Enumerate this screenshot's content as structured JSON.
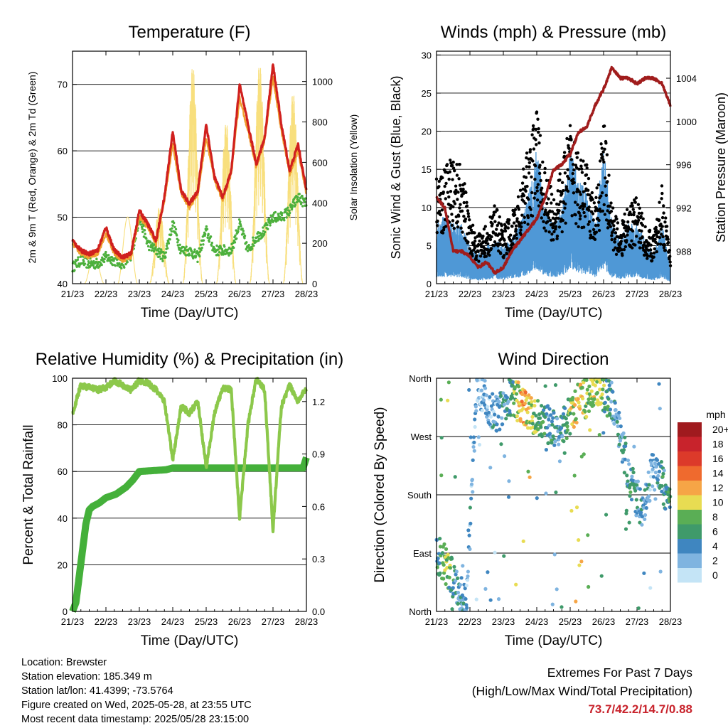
{
  "x_ticks": [
    "21/23",
    "22/23",
    "23/23",
    "24/23",
    "25/23",
    "26/23",
    "27/23",
    "28/23"
  ],
  "panels": {
    "temperature": {
      "title": "Temperature (F)",
      "xlabel": "Time (Day/UTC)",
      "ylabel_left": "2m & 9m T (Red, Orange) & 2m Td (Green)",
      "ylabel_right": "Solar Insolation (Yellow)",
      "yticks_left": [
        "40",
        "50",
        "60",
        "70"
      ],
      "yticks_right": [
        "0",
        "200",
        "400",
        "600",
        "800",
        "1000"
      ]
    },
    "winds": {
      "title": "Winds (mph) & Pressure (mb)",
      "xlabel": "Time (Day/UTC)",
      "ylabel_left": "Sonic Wind & Gust (Blue, Black)",
      "ylabel_right": "Station Pressure (Maroon)",
      "yticks_left": [
        "0",
        "5",
        "10",
        "15",
        "20",
        "25",
        "30"
      ],
      "yticks_right": [
        "988",
        "992",
        "996",
        "1000",
        "1004"
      ]
    },
    "humidity": {
      "title": "Relative Humidity (%) & Precipitation (in)",
      "xlabel": "Time (Day/UTC)",
      "ylabel_left": "Percent & Total Rainfall",
      "yticks_left": [
        "0",
        "20",
        "40",
        "60",
        "80",
        "100"
      ],
      "yticks_right": [
        "0.0",
        "0.3",
        "0.6",
        "0.9",
        "1.2"
      ]
    },
    "direction": {
      "title": "Wind Direction",
      "xlabel": "Time (Day/UTC)",
      "ylabel_left": "Direction (Colored By Speed)",
      "yticks_left": [
        "North",
        "East",
        "South",
        "West",
        "North"
      ],
      "legend_title": "mph",
      "legend_labels": [
        "20+",
        "18",
        "16",
        "14",
        "12",
        "10",
        "8",
        "6",
        "4",
        "2",
        "0"
      ],
      "legend_colors": [
        "#a01a1e",
        "#c8232c",
        "#dc3a2a",
        "#ef6a2e",
        "#f6a546",
        "#e8dc52",
        "#5aae55",
        "#3f9a6a",
        "#3f86c0",
        "#7fb4e0",
        "#c4e4f6"
      ]
    }
  },
  "info": {
    "location": "Location: Brewster",
    "elevation": "Station elevation: 185.349 m",
    "latlon": "Station lat/lon: 41.4399; -73.5764",
    "created": "Figure created on Wed, 2025-05-28, at 23:55 UTC",
    "recent": "Most recent data timestamp: 2025/05/28 23:15:00"
  },
  "extremes": {
    "heading": "Extremes For Past 7 Days",
    "subheading": "(High/Low/Max Wind/Total Precipitation)",
    "values": "73.7/42.2/14.7/0.88"
  },
  "chart_data": [
    {
      "type": "line",
      "title": "Temperature (F)",
      "xlabel": "Time (Day/UTC)",
      "ylabel": "2m & 9m T (Red, Orange) & 2m Td (Green)",
      "ylim": [
        40,
        75
      ],
      "y2label": "Solar Insolation (Yellow)",
      "y2lim": [
        0,
        1150
      ],
      "x": [
        21,
        21.25,
        21.5,
        21.75,
        22,
        22.25,
        22.5,
        22.75,
        23,
        23.25,
        23.5,
        23.75,
        24,
        24.25,
        24.5,
        24.75,
        25,
        25.25,
        25.5,
        25.75,
        26,
        26.25,
        26.5,
        26.75,
        27,
        27.25,
        27.5,
        27.75,
        28
      ],
      "series": [
        {
          "name": "2m T",
          "color": "#d0201e",
          "axis": "left",
          "values": [
            46.5,
            45,
            44.5,
            45,
            48.5,
            45,
            44,
            44.5,
            51,
            49,
            46.5,
            53,
            63,
            54,
            52,
            54,
            64,
            56,
            53,
            57,
            70,
            64,
            58,
            62,
            73,
            64,
            57,
            61,
            54
          ]
        },
        {
          "name": "9m T",
          "color": "#f0a030",
          "axis": "left",
          "values": [
            46,
            44.5,
            44,
            44.5,
            47.5,
            44.5,
            43.5,
            44,
            50,
            48.5,
            46,
            52.5,
            61,
            53.5,
            51.5,
            53.5,
            62,
            55.5,
            52.5,
            56.5,
            68,
            63,
            57.5,
            61.5,
            71,
            63,
            56.5,
            60,
            53.5
          ]
        },
        {
          "name": "2m Td",
          "color": "#4cb03c",
          "axis": "left",
          "values": [
            42.5,
            43.5,
            43,
            43,
            44,
            43.5,
            43,
            44,
            50,
            46,
            45,
            44,
            49,
            45,
            45,
            44,
            48,
            45,
            45,
            45,
            49,
            45,
            47,
            48,
            50,
            50,
            51,
            53,
            52
          ]
        },
        {
          "name": "Solar",
          "color": "#f7dc6f",
          "axis": "right",
          "peaks_x": [
            21.65,
            22.65,
            23.6,
            24.6,
            25.6,
            26.6,
            27.6
          ],
          "peaks": [
            150,
            330,
            380,
            1080,
            800,
            1090,
            950
          ]
        }
      ]
    },
    {
      "type": "scatter",
      "title": "Winds (mph) & Pressure (mb)",
      "xlabel": "Time (Day/UTC)",
      "ylabel": "Sonic Wind & Gust (Blue, Black)",
      "ylim": [
        0,
        30.5
      ],
      "y2label": "Station Pressure (Maroon)",
      "y2lim": [
        985,
        1006.5
      ],
      "x": [
        21,
        21.25,
        21.5,
        21.75,
        22,
        22.25,
        22.5,
        22.75,
        23,
        23.25,
        23.5,
        23.75,
        24,
        24.25,
        24.5,
        24.75,
        25,
        25.25,
        25.5,
        25.75,
        26,
        26.25,
        26.5,
        26.75,
        27,
        27.25,
        27.5,
        27.75,
        28
      ],
      "series": [
        {
          "name": "Wind",
          "color": "#4f98d6",
          "values": [
            4,
            4.5,
            4,
            4,
            2.5,
            2,
            2.5,
            3,
            2.5,
            3,
            4,
            6,
            9,
            5,
            4,
            5,
            9,
            7,
            6,
            4,
            9,
            4,
            3,
            4,
            4,
            3,
            2,
            4,
            1
          ]
        },
        {
          "name": "Gust",
          "color": "#000000",
          "values": [
            11,
            12,
            13,
            12,
            7,
            5,
            6,
            8,
            6,
            7,
            10,
            14,
            18,
            12,
            9,
            12,
            17,
            13,
            12,
            8,
            17,
            8,
            6,
            8,
            9,
            6,
            5,
            10,
            3
          ]
        },
        {
          "name": "Pressure",
          "color": "#a01c1c",
          "values": [
            993,
            992,
            988,
            988,
            987.5,
            986.5,
            987,
            986,
            986.5,
            988,
            989,
            990,
            991,
            993,
            995.5,
            996,
            997,
            999,
            999.5,
            1001.5,
            1003,
            1005,
            1004,
            1004,
            1003.5,
            1004,
            1004,
            1003.5,
            1001.5
          ]
        }
      ]
    },
    {
      "type": "line",
      "title": "Relative Humidity (%) & Precipitation (in)",
      "xlabel": "Time (Day/UTC)",
      "ylabel": "Percent & Total Rainfall",
      "ylim": [
        0,
        100
      ],
      "y2lim": [
        0,
        1.3333
      ],
      "x": [
        21,
        21.25,
        21.5,
        21.75,
        22,
        22.25,
        22.5,
        22.75,
        23,
        23.25,
        23.5,
        23.75,
        24,
        24.25,
        24.5,
        24.75,
        25,
        25.25,
        25.5,
        25.75,
        26,
        26.25,
        26.5,
        26.75,
        27,
        27.25,
        27.5,
        27.75,
        28
      ],
      "series": [
        {
          "name": "Relative Humidity",
          "color": "#8cc84b",
          "values": [
            85,
            97,
            96,
            95,
            96,
            99,
            97,
            95,
            99,
            98,
            95,
            90,
            65,
            88,
            85,
            90,
            62,
            85,
            96,
            95,
            40,
            80,
            100,
            95,
            35,
            88,
            97,
            90,
            96
          ]
        },
        {
          "name": "Total Rainfall",
          "color": "#44b03a",
          "axis": "right",
          "x": [
            21,
            21.1,
            21.2,
            21.3,
            21.4,
            21.5,
            21.6,
            21.8,
            22,
            22.3,
            22.6,
            22.8,
            23,
            23.8,
            24,
            25,
            26,
            27,
            27.9,
            28
          ],
          "values": [
            0,
            0.05,
            0.2,
            0.35,
            0.5,
            0.58,
            0.6,
            0.62,
            0.65,
            0.67,
            0.71,
            0.75,
            0.8,
            0.81,
            0.82,
            0.82,
            0.82,
            0.82,
            0.82,
            0.88
          ]
        }
      ]
    },
    {
      "type": "scatter",
      "title": "Wind Direction",
      "xlabel": "Time (Day/UTC)",
      "ylabel": "Direction (Colored By Speed)",
      "y_categories": [
        "North",
        "East",
        "South",
        "West",
        "North"
      ],
      "series": [
        {
          "name": "direction",
          "x": [
            21.0,
            21.3,
            21.6,
            21.9,
            22.2,
            22.8,
            23.2,
            23.6,
            23.9,
            24.3,
            24.7,
            25.2,
            25.5,
            25.8,
            26.3,
            26.8,
            27.2,
            27.5,
            27.9
          ],
          "values_deg": [
            90,
            70,
            40,
            10,
            350,
            300,
            330,
            320,
            300,
            290,
            280,
            320,
            330,
            350,
            320,
            200,
            150,
            230,
            180
          ],
          "speed_mph": [
            5,
            8,
            4,
            3,
            2,
            3,
            5,
            12,
            8,
            5,
            4,
            11,
            9,
            10,
            3,
            5,
            4,
            2,
            6
          ]
        }
      ]
    }
  ]
}
